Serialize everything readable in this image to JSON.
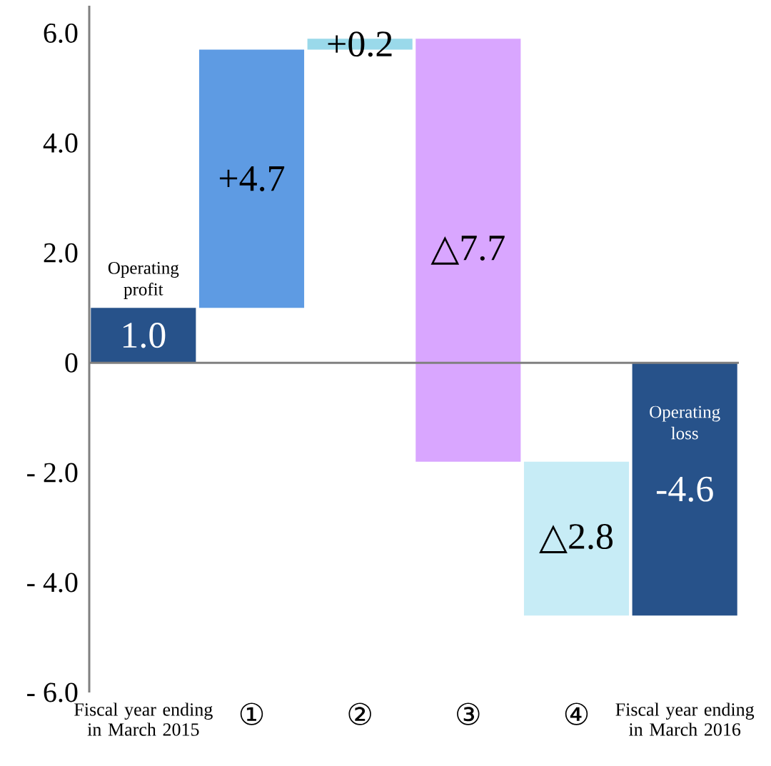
{
  "chart_data": {
    "type": "bar",
    "categories": [
      "Fiscal year ending in March 2015",
      "①",
      "②",
      "③",
      "④",
      "Fiscal year ending in March 2016"
    ],
    "values": [
      1.0,
      4.7,
      0.2,
      -7.7,
      -2.8,
      -4.6
    ],
    "base": [
      0,
      1.0,
      5.7,
      5.9,
      -1.8,
      0
    ],
    "colors": [
      "#27528a",
      "#5e9be3",
      "#9ad9ea",
      "#d9a6ff",
      "#c7ecf6",
      "#27528a"
    ],
    "value_labels": [
      "1.0",
      "+4.7",
      "+0.2",
      "△7.7",
      "△2.8",
      "-4.6"
    ],
    "ylim": [
      -6,
      6.5
    ],
    "yticks": [
      {
        "value": 6,
        "label": "6.0"
      },
      {
        "value": 4,
        "label": "4.0"
      },
      {
        "value": 2,
        "label": "2.0"
      },
      0,
      {
        "value": -2,
        "label": "- 2.0"
      },
      {
        "value": -4,
        "label": "- 4.0"
      },
      {
        "value": -6,
        "label": "- 6.0"
      }
    ],
    "annotations": [
      "Operating profit",
      "Operating loss"
    ]
  }
}
